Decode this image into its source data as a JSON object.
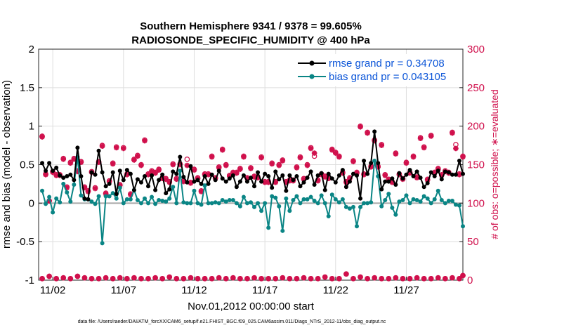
{
  "chart_data": {
    "type": "line",
    "title_line1": "Southern Hemisphere 9341 / 9378 = 99.605%",
    "title_line2": "RADIOSONDE_SPECIFIC_HUMIDITY @ 400 hPa",
    "xlabel": "Nov.01,2012 00:00:00 start",
    "ylabel": "rmse and bias (model - observation)",
    "ylabel_right": "# of obs: o=possible; ∗=evaluated",
    "footnote": "data file: /Users/raeder/DAI/ATM_forcXX/CAM6_setup/f.e21.FHIST_BGC.f09_025.CAM6assim.011/Diags_NTrS_2012-11/obs_diag_output.nc",
    "xlim": [
      1,
      31
    ],
    "ylim": [
      -1,
      2
    ],
    "ylim_right": [
      0,
      300
    ],
    "grid": true,
    "legend_position": "top-right",
    "yticks": [
      "-1",
      "-0.5",
      "0",
      "0.5",
      "1",
      "1.5",
      "2"
    ],
    "ytick_values": [
      -1,
      -0.5,
      0,
      0.5,
      1,
      1.5,
      2
    ],
    "yticks_right": [
      "0",
      "50",
      "100",
      "150",
      "200",
      "250",
      "300"
    ],
    "ytick_right_values": [
      0,
      50,
      100,
      150,
      200,
      250,
      300
    ],
    "xticks": [
      "11/02",
      "11/07",
      "11/12",
      "11/17",
      "11/22",
      "11/27"
    ],
    "xtick_values": [
      2,
      7,
      12,
      17,
      22,
      27
    ],
    "colors": {
      "rmse": "#000000",
      "bias": "#0a8585",
      "obs": "#d0104c",
      "legend_text": "#0b55d8"
    },
    "series": [
      {
        "name": "rmse grand pr = 0.34708",
        "x": [
          1.25,
          1.5,
          1.75,
          2.0,
          2.25,
          2.5,
          2.75,
          3.0,
          3.25,
          3.5,
          3.75,
          4.0,
          4.25,
          4.5,
          4.75,
          5.0,
          5.25,
          5.5,
          5.75,
          6.0,
          6.25,
          6.5,
          6.75,
          7.0,
          7.25,
          7.5,
          7.75,
          8.0,
          8.25,
          8.5,
          8.75,
          9.0,
          9.25,
          9.5,
          9.75,
          10.0,
          10.25,
          10.5,
          10.75,
          11.0,
          11.25,
          11.5,
          11.75,
          12.0,
          12.25,
          12.5,
          12.75,
          13.0,
          13.25,
          13.5,
          13.75,
          14.0,
          14.25,
          14.5,
          14.75,
          15.0,
          15.25,
          15.5,
          15.75,
          16.0,
          16.25,
          16.5,
          16.75,
          17.0,
          17.25,
          17.5,
          17.75,
          18.0,
          18.25,
          18.5,
          18.75,
          19.0,
          19.25,
          19.5,
          19.75,
          20.0,
          20.25,
          20.5,
          20.75,
          21.0,
          21.25,
          21.5,
          21.75,
          22.0,
          22.25,
          22.5,
          22.75,
          23.0,
          23.25,
          23.5,
          23.75,
          24.0,
          24.25,
          24.5,
          24.75,
          25.0,
          25.25,
          25.5,
          25.75,
          26.0,
          26.25,
          26.5,
          26.75,
          27.0,
          27.25,
          27.5,
          27.75,
          28.0,
          28.25,
          28.5,
          28.75,
          29.0,
          29.25,
          29.5,
          29.75,
          30.0,
          30.25,
          30.5,
          30.75,
          31.0
        ],
        "values": [
          0.52,
          0.42,
          0.52,
          0.42,
          0.46,
          0.36,
          0.33,
          0.35,
          0.37,
          0.3,
          0.72,
          0.35,
          0.06,
          0.05,
          0.4,
          0.37,
          0.68,
          0.4,
          0.22,
          0.25,
          0.4,
          0.12,
          0.42,
          0.3,
          0.43,
          0.38,
          0.17,
          0.31,
          0.27,
          0.35,
          0.22,
          0.36,
          0.17,
          0.3,
          0.37,
          0.13,
          0.18,
          0.41,
          0.38,
          0.6,
          0.34,
          0.27,
          0.48,
          0.28,
          0.3,
          0.25,
          0.35,
          0.25,
          0.37,
          0.3,
          0.42,
          0.32,
          0.28,
          0.32,
          0.36,
          0.21,
          0.28,
          0.36,
          0.28,
          0.33,
          0.22,
          0.4,
          0.28,
          0.38,
          0.35,
          0.2,
          0.41,
          0.31,
          0.36,
          0.16,
          0.36,
          0.3,
          0.35,
          0.22,
          0.27,
          0.33,
          0.41,
          0.24,
          0.36,
          0.39,
          0.17,
          0.38,
          0.32,
          0.27,
          0.36,
          0.43,
          0.21,
          0.28,
          0.38,
          0.36,
          0.06,
          0.55,
          0.38,
          0.52,
          0.93,
          0.52,
          0.18,
          0.28,
          0.28,
          0.32,
          0.24,
          0.39,
          0.32,
          0.37,
          0.43,
          0.35,
          0.41,
          0.33,
          0.21,
          0.26,
          0.4,
          0.35,
          0.42,
          0.31,
          0.41,
          0.4,
          0.37,
          0.37,
          0.55,
          0.38
        ]
      },
      {
        "name": "bias grand pr = 0.043105",
        "x": [
          1.25,
          1.5,
          1.75,
          2.0,
          2.25,
          2.5,
          2.75,
          3.0,
          3.25,
          3.5,
          3.75,
          4.0,
          4.25,
          4.5,
          4.75,
          5.0,
          5.25,
          5.5,
          5.75,
          6.0,
          6.25,
          6.5,
          6.75,
          7.0,
          7.25,
          7.5,
          7.75,
          8.0,
          8.25,
          8.5,
          8.75,
          9.0,
          9.25,
          9.5,
          9.75,
          10.0,
          10.25,
          10.5,
          10.75,
          11.0,
          11.25,
          11.5,
          11.75,
          12.0,
          12.25,
          12.5,
          12.75,
          13.0,
          13.25,
          13.5,
          13.75,
          14.0,
          14.25,
          14.5,
          14.75,
          15.0,
          15.25,
          15.5,
          15.75,
          16.0,
          16.25,
          16.5,
          16.75,
          17.0,
          17.25,
          17.5,
          17.75,
          18.0,
          18.25,
          18.5,
          18.75,
          19.0,
          19.25,
          19.5,
          19.75,
          20.0,
          20.25,
          20.5,
          20.75,
          21.0,
          21.25,
          21.5,
          21.75,
          22.0,
          22.25,
          22.5,
          22.75,
          23.0,
          23.25,
          23.5,
          23.75,
          24.0,
          24.25,
          24.5,
          24.75,
          25.0,
          25.25,
          25.5,
          25.75,
          26.0,
          26.25,
          26.5,
          26.75,
          27.0,
          27.25,
          27.5,
          27.75,
          28.0,
          28.25,
          28.5,
          28.75,
          29.0,
          29.25,
          29.5,
          29.75,
          30.0,
          30.25,
          30.5,
          30.75,
          31.0
        ],
        "values": [
          0.16,
          -0.01,
          0.08,
          -0.12,
          0.06,
          0.01,
          0.25,
          0.14,
          0.02,
          0.24,
          0.6,
          0.1,
          0.05,
          0.05,
          0.02,
          -0.01,
          0.09,
          -0.52,
          0.09,
          0.09,
          0.13,
          0.06,
          0.2,
          0.0,
          0.05,
          0.05,
          0.17,
          0.04,
          0.0,
          0.06,
          0.0,
          0.08,
          -0.01,
          0.04,
          0.03,
          0.02,
          0.06,
          0.21,
          0.0,
          0.42,
          0.01,
          0.0,
          0.0,
          0.16,
          0.0,
          -0.02,
          0.23,
          0.0,
          0.0,
          0.01,
          0.0,
          0.04,
          0.02,
          0.04,
          0.04,
          0.0,
          -0.04,
          0.08,
          0.0,
          0.01,
          -0.05,
          0.0,
          -0.1,
          0.0,
          -0.32,
          0.09,
          0.07,
          -0.04,
          -0.36,
          0.06,
          -0.1,
          0.04,
          0.09,
          0.0,
          0.05,
          0.05,
          0.08,
          0.03,
          0.0,
          0.1,
          0.0,
          -0.17,
          0.11,
          0.05,
          0.01,
          0.05,
          -0.05,
          -0.07,
          -0.05,
          -0.3,
          -0.05,
          0.0,
          0.0,
          0.01,
          0.55,
          0.35,
          -0.04,
          0.04,
          0.12,
          -0.06,
          -0.15,
          0.02,
          0.04,
          0.1,
          0.0,
          0.05,
          0.04,
          0.02,
          0.09,
          0.06,
          0.0,
          0.05,
          0.16,
          0.04,
          0.0,
          0.03,
          0.03,
          -0.02,
          -0.03,
          -0.3
        ]
      }
    ],
    "obs_possible": {
      "x": [
        1.25,
        1.5,
        1.75,
        2.0,
        2.25,
        2.5,
        2.75,
        3.0,
        3.25,
        3.5,
        3.75,
        4.0,
        4.25,
        4.5,
        4.75,
        5.0,
        5.25,
        5.5,
        5.75,
        6.0,
        6.25,
        6.5,
        6.75,
        7.0,
        7.25,
        7.5,
        7.75,
        8.0,
        8.25,
        8.5,
        8.75,
        9.0,
        9.25,
        9.5,
        9.75,
        10.0,
        10.25,
        10.5,
        10.75,
        11.0,
        11.25,
        11.5,
        11.75,
        12.0,
        12.25,
        12.5,
        12.75,
        13.0,
        13.25,
        13.5,
        13.75,
        14.0,
        14.25,
        14.5,
        14.75,
        15.0,
        15.25,
        15.5,
        15.75,
        16.0,
        16.25,
        16.5,
        16.75,
        17.0,
        17.25,
        17.5,
        17.75,
        18.0,
        18.25,
        18.5,
        18.75,
        19.0,
        19.25,
        19.5,
        19.75,
        20.0,
        20.25,
        20.5,
        20.75,
        21.0,
        21.25,
        21.5,
        21.75,
        22.0,
        22.25,
        22.5,
        22.75,
        23.0,
        23.25,
        23.5,
        23.75,
        24.0,
        24.25,
        24.5,
        24.75,
        25.0,
        25.25,
        25.5,
        25.75,
        26.0,
        26.25,
        26.5,
        26.75,
        27.0,
        27.25,
        27.5,
        27.75,
        28.0,
        28.25,
        28.5,
        28.75,
        29.0,
        29.25,
        29.5,
        29.75,
        30.0,
        30.25,
        30.5,
        30.75,
        31.0
      ],
      "values": [
        187,
        138,
        103,
        141,
        137,
        137,
        158,
        121,
        153,
        158,
        142,
        154,
        121,
        116,
        141,
        120,
        154,
        175,
        113,
        129,
        152,
        173,
        124,
        172,
        138,
        112,
        157,
        162,
        150,
        182,
        138,
        142,
        140,
        144,
        133,
        132,
        128,
        151,
        132,
        151,
        129,
        157,
        127,
        144,
        133,
        116,
        138,
        138,
        161,
        133,
        147,
        170,
        150,
        136,
        140,
        140,
        145,
        161,
        133,
        146,
        135,
        134,
        160,
        128,
        128,
        152,
        128,
        150,
        156,
        128,
        130,
        130,
        147,
        160,
        132,
        150,
        172,
        161,
        130,
        138,
        135,
        133,
        170,
        166,
        161,
        140,
        128,
        133,
        155,
        140,
        200,
        138,
        192,
        148,
        182,
        148,
        176,
        137,
        131,
        128,
        165,
        138,
        132,
        153,
        140,
        161,
        134,
        185,
        173,
        131,
        188,
        140,
        145,
        137,
        142,
        140,
        192,
        176,
        138,
        161
      ]
    },
    "obs_evaluated": {
      "x": [
        1.25,
        1.5,
        1.75,
        2.0,
        2.25,
        2.5,
        2.75,
        3.0,
        3.25,
        3.5,
        3.75,
        4.0,
        4.25,
        4.5,
        4.75,
        5.0,
        5.25,
        5.5,
        5.75,
        6.0,
        6.25,
        6.5,
        6.75,
        7.0,
        7.25,
        7.5,
        7.75,
        8.0,
        8.25,
        8.5,
        8.75,
        9.0,
        9.25,
        9.5,
        9.75,
        10.0,
        10.25,
        10.5,
        10.75,
        11.0,
        11.25,
        11.5,
        11.75,
        12.0,
        12.25,
        12.5,
        12.75,
        13.0,
        13.25,
        13.5,
        13.75,
        14.0,
        14.25,
        14.5,
        14.75,
        15.0,
        15.25,
        15.5,
        15.75,
        16.0,
        16.25,
        16.5,
        16.75,
        17.0,
        17.25,
        17.5,
        17.75,
        18.0,
        18.25,
        18.5,
        18.75,
        19.0,
        19.25,
        19.5,
        19.75,
        20.0,
        20.25,
        20.5,
        20.75,
        21.0,
        21.25,
        21.5,
        21.75,
        22.0,
        22.25,
        22.5,
        22.75,
        23.0,
        23.25,
        23.5,
        23.75,
        24.0,
        24.25,
        24.5,
        24.75,
        25.0,
        25.25,
        25.5,
        25.75,
        26.0,
        26.25,
        26.5,
        26.75,
        27.0,
        27.25,
        27.5,
        27.75,
        28.0,
        28.25,
        28.5,
        28.75,
        29.0,
        29.25,
        29.5,
        29.75,
        30.0,
        30.25,
        30.5,
        30.75,
        31.0
      ],
      "values": [
        186,
        137,
        103,
        140,
        136,
        136,
        157,
        120,
        152,
        157,
        141,
        153,
        120,
        115,
        140,
        119,
        153,
        174,
        112,
        128,
        151,
        172,
        123,
        171,
        137,
        111,
        156,
        161,
        149,
        181,
        137,
        141,
        139,
        143,
        132,
        131,
        127,
        150,
        131,
        150,
        128,
        149,
        126,
        143,
        132,
        115,
        137,
        137,
        160,
        132,
        146,
        169,
        149,
        135,
        139,
        139,
        144,
        160,
        132,
        145,
        134,
        133,
        159,
        127,
        127,
        151,
        127,
        149,
        155,
        127,
        129,
        129,
        146,
        159,
        131,
        149,
        171,
        165,
        129,
        137,
        134,
        132,
        169,
        165,
        160,
        139,
        127,
        132,
        154,
        139,
        199,
        137,
        191,
        147,
        181,
        147,
        175,
        136,
        130,
        127,
        164,
        137,
        131,
        152,
        139,
        160,
        133,
        184,
        172,
        130,
        187,
        139,
        144,
        136,
        141,
        139,
        191,
        171,
        137,
        160
      ]
    },
    "obs_bottom": {
      "x": [
        1.25,
        1.75,
        2.25,
        2.75,
        3.25,
        3.75,
        4.25,
        4.75,
        5.25,
        5.75,
        6.25,
        6.75,
        7.25,
        7.75,
        8.25,
        8.75,
        9.25,
        9.75,
        10.25,
        10.75,
        11.25,
        11.75,
        12.25,
        12.75,
        13.25,
        13.75,
        14.25,
        14.75,
        15.25,
        15.75,
        16.25,
        16.75,
        17.25,
        17.75,
        18.25,
        18.75,
        19.25,
        19.75,
        20.25,
        20.75,
        21.25,
        21.75,
        22.25,
        22.75,
        23.25,
        23.75,
        24.25,
        24.75,
        25.25,
        25.75,
        26.25,
        26.75,
        27.25,
        27.75,
        28.25,
        28.75,
        29.25,
        29.75,
        30.25,
        30.75,
        31.0
      ],
      "values": [
        2,
        5,
        2,
        3,
        2,
        5,
        3,
        2,
        2,
        3,
        2,
        3,
        2,
        3,
        2,
        2,
        3,
        2,
        4,
        2,
        2,
        3,
        2,
        2,
        2,
        3,
        2,
        3,
        2,
        2,
        3,
        2,
        2,
        2,
        3,
        2,
        2,
        3,
        2,
        2,
        4,
        2,
        2,
        8,
        2,
        4,
        2,
        3,
        2,
        2,
        3,
        2,
        2,
        3,
        2,
        2,
        3,
        2,
        3,
        2,
        6
      ]
    }
  }
}
